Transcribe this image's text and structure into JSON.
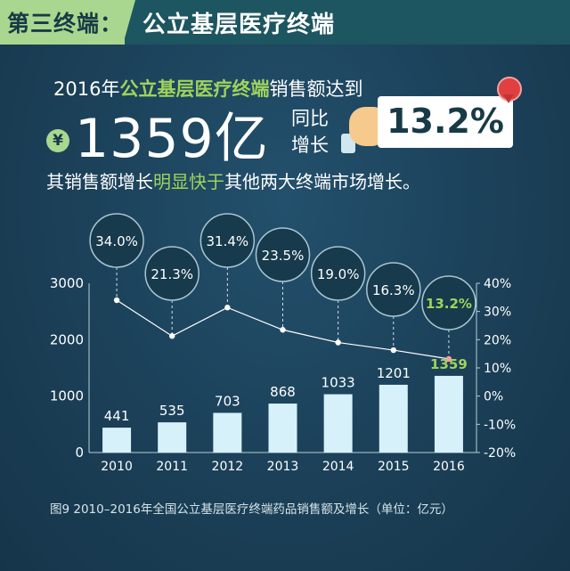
{
  "header": {
    "tag": "第三终端：",
    "title": "公立基层医疗终端"
  },
  "headline": {
    "prefix": "2016年",
    "highlight": "公立基层医疗终端",
    "suffix": "销售额达到",
    "currency": "¥",
    "amount": "1359亿",
    "yoy_label": "同比增长",
    "growth_rate": "13.2%"
  },
  "subline": {
    "part1": "其销售额增长",
    "highlight": "明显快于",
    "part2": "其他两大终端市场增长。"
  },
  "caption": "图9  2010–2016年全国公立基层医疗终端药品销售额及增长（单位：亿元）",
  "colors": {
    "background": "#1b4058",
    "accent_green": "#9fd35c",
    "header_green": "#a9d78f",
    "bar": "#d6f1fa",
    "bubble": "#173a4c"
  },
  "chart_data": {
    "type": "bar",
    "categories": [
      "2010",
      "2011",
      "2012",
      "2013",
      "2014",
      "2015",
      "2016"
    ],
    "series": [
      {
        "type": "bar",
        "axis": "left",
        "values": [
          441,
          535,
          703,
          868,
          1033,
          1201,
          1359
        ],
        "labels": [
          "441",
          "535",
          "703",
          "868",
          "1033",
          "1201",
          "1359"
        ]
      },
      {
        "type": "line",
        "axis": "right",
        "values": [
          34.0,
          21.3,
          31.4,
          23.5,
          19.0,
          16.3,
          13.2
        ],
        "labels": [
          "34.0%",
          "21.3%",
          "31.4%",
          "23.5%",
          "19.0%",
          "16.3%",
          "13.2%"
        ]
      }
    ],
    "y_left": {
      "min": 0,
      "max": 3000,
      "ticks": [
        0,
        1000,
        2000,
        3000
      ],
      "tick_labels": [
        "0",
        "1000",
        "2000",
        "3000"
      ]
    },
    "y_right": {
      "min": -20,
      "max": 40,
      "ticks": [
        -20,
        -10,
        0,
        10,
        20,
        30,
        40
      ],
      "tick_labels": [
        "-20%",
        "-10%",
        "0%",
        "10%",
        "20%",
        "30%",
        "40%"
      ]
    },
    "highlight_last": true,
    "grid": false
  }
}
